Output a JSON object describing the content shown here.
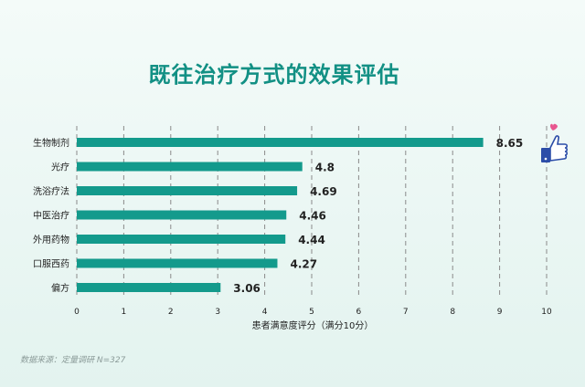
{
  "chart_data": {
    "type": "bar",
    "orientation": "horizontal",
    "title": "既往治疗方式的效果评估",
    "xlabel": "患者满意度评分（满分10分）",
    "ylabel": "",
    "xlim": [
      0,
      10
    ],
    "xticks": [
      "0",
      "1",
      "2",
      "3",
      "4",
      "5",
      "6",
      "7",
      "8",
      "9",
      "10"
    ],
    "grid": "vertical dashed",
    "categories": [
      "生物制剂",
      "光疗",
      "洗浴疗法",
      "中医治疗",
      "外用药物",
      "口服西药",
      "偏方"
    ],
    "values": [
      8.65,
      4.8,
      4.69,
      4.46,
      4.44,
      4.27,
      3.06
    ],
    "value_labels": [
      "8.65",
      "4.8",
      "4.69",
      "4.46",
      "4.44",
      "4.27",
      "3.06"
    ],
    "bar_color": "#139a8c",
    "title_color": "#129084"
  },
  "source_note": "数据来源：定量调研 N=327",
  "decoration_icon": "thumbs-up-icon"
}
